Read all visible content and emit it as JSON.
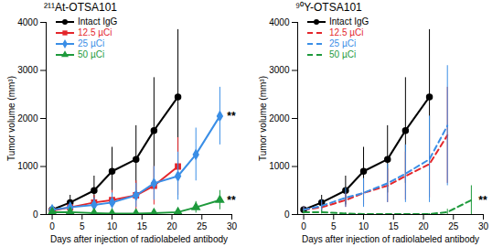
{
  "chart_data": [
    {
      "type": "line",
      "title": "²¹¹At-OTSA101",
      "x_label": "Days after injection of radiolabeled antibody",
      "y_label": "Tumor volume (mm³)",
      "xlim": [
        -1,
        30
      ],
      "xticks": [
        0,
        5,
        10,
        15,
        20,
        25,
        30
      ],
      "ylim": [
        0,
        4000
      ],
      "yticks": [
        0,
        1000,
        2000,
        3000,
        4000
      ],
      "grid": false,
      "legend": "upper left",
      "series": [
        {
          "name": "Intact IgG",
          "color": "#000000",
          "marker": "circle",
          "line_style": "solid",
          "x": [
            0,
            3,
            7,
            10,
            14,
            17,
            21
          ],
          "values": [
            100,
            250,
            500,
            900,
            1150,
            1750,
            2450
          ],
          "errors": [
            60,
            150,
            300,
            500,
            700,
            1100,
            1400
          ]
        },
        {
          "name": "12.5 µCi",
          "color": "#e4262b",
          "marker": "square",
          "line_style": "solid",
          "x": [
            0,
            3,
            7,
            10,
            14,
            17,
            21
          ],
          "values": [
            80,
            150,
            250,
            300,
            400,
            600,
            1000
          ],
          "errors": [
            50,
            80,
            150,
            200,
            300,
            400,
            600
          ]
        },
        {
          "name": "25 µCi",
          "color": "#3a8ee6",
          "marker": "diamond",
          "line_style": "solid",
          "x": [
            0,
            3,
            7,
            10,
            14,
            17,
            21,
            24,
            28
          ],
          "values": [
            100,
            150,
            200,
            250,
            400,
            650,
            800,
            1250,
            2050
          ],
          "errors": [
            60,
            100,
            150,
            200,
            250,
            350,
            500,
            550,
            600
          ]
        },
        {
          "name": "50 µCi",
          "color": "#1e9a3c",
          "marker": "triangle",
          "line_style": "solid",
          "x": [
            0,
            3,
            7,
            10,
            14,
            17,
            21,
            24,
            28
          ],
          "values": [
            50,
            50,
            30,
            20,
            20,
            30,
            50,
            150,
            300
          ],
          "errors": [
            40,
            40,
            30,
            20,
            20,
            30,
            50,
            120,
            200
          ]
        }
      ],
      "annotations": [
        {
          "text": "**",
          "x": 29.2,
          "y": 2050
        },
        {
          "text": "**",
          "x": 29.2,
          "y": 300
        }
      ]
    },
    {
      "type": "line",
      "title": "⁹⁰Y-OTSA101",
      "x_label": "Days after injection of radiolabeled antibody",
      "y_label": "Tumor volume (mm³)",
      "xlim": [
        -1,
        30
      ],
      "xticks": [
        0,
        5,
        10,
        15,
        20,
        25,
        30
      ],
      "ylim": [
        0,
        4000
      ],
      "yticks": [
        0,
        1000,
        2000,
        3000,
        4000
      ],
      "grid": false,
      "legend": "upper left",
      "series": [
        {
          "name": "Intact IgG",
          "color": "#000000",
          "marker": "circle",
          "line_style": "solid",
          "x": [
            0,
            3,
            7,
            10,
            14,
            17,
            21
          ],
          "values": [
            100,
            250,
            500,
            900,
            1150,
            1750,
            2450
          ],
          "errors": [
            60,
            150,
            300,
            500,
            700,
            1100,
            1400
          ]
        },
        {
          "name": "12.5 µCi",
          "color": "#e4262b",
          "marker": "none",
          "line_style": "dashed",
          "x": [
            0,
            3,
            7,
            10,
            14,
            17,
            21,
            24
          ],
          "values": [
            100,
            150,
            300,
            450,
            600,
            800,
            1050,
            1650
          ],
          "errors": [
            60,
            100,
            150,
            250,
            350,
            500,
            700,
            1000
          ]
        },
        {
          "name": "25 µCi",
          "color": "#3a8ee6",
          "marker": "none",
          "line_style": "dashed",
          "x": [
            0,
            3,
            7,
            10,
            14,
            17,
            21,
            24
          ],
          "values": [
            100,
            180,
            350,
            450,
            650,
            850,
            1150,
            1850
          ],
          "errors": [
            60,
            120,
            200,
            300,
            400,
            600,
            900,
            1250
          ]
        },
        {
          "name": "50 µCi",
          "color": "#1e9a3c",
          "marker": "none",
          "line_style": "dashed",
          "x": [
            0,
            3,
            7,
            10,
            14,
            17,
            21,
            24,
            28
          ],
          "values": [
            50,
            50,
            20,
            10,
            10,
            10,
            10,
            50,
            300
          ],
          "errors": [
            40,
            40,
            20,
            10,
            10,
            10,
            10,
            60,
            300
          ]
        }
      ],
      "annotations": [
        {
          "text": "**",
          "x": 29.2,
          "y": 300
        }
      ]
    }
  ]
}
